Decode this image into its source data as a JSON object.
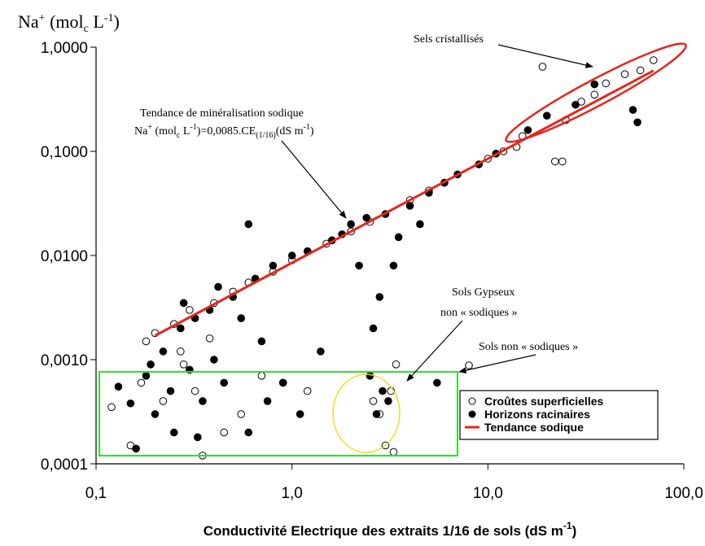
{
  "chart_data": {
    "type": "scatter",
    "y_label": [
      "Na",
      "+",
      " (mol",
      "c",
      " L",
      "-1",
      ")"
    ],
    "x_label": [
      "Conductivité Electrique des extraits 1/16 de sols (dS m",
      "-1",
      ")"
    ],
    "annotations": {
      "crystal": "Sels cristallisés",
      "trend_title": "Tendance de minéralisation sodique",
      "formula": [
        "Na",
        "+",
        " (mol",
        "c",
        " L",
        "-1",
        ")=0,0085.CE",
        "(1/16)",
        "(dS m",
        "-1",
        ")"
      ],
      "gypsum_1": "Sols Gypseux",
      "gypsum_2": "non « sodiques »",
      "non_sodic": "Sols non « sodiques »"
    },
    "log_x": true,
    "log_y": true,
    "xlim": [
      0.1,
      100
    ],
    "ylim": [
      0.0001,
      1
    ],
    "xticks": [
      {
        "value": 0.1,
        "label": "0,1"
      },
      {
        "value": 1,
        "label": "1,0"
      },
      {
        "value": 10,
        "label": "10,0"
      },
      {
        "value": 100,
        "label": "100,0"
      }
    ],
    "yticks": [
      {
        "value": 0.0001,
        "label": "0,0001"
      },
      {
        "value": 0.001,
        "label": "0,0010"
      },
      {
        "value": 0.01,
        "label": "0,0100"
      },
      {
        "value": 0.1,
        "label": "0,1000"
      },
      {
        "value": 1,
        "label": "1,0000"
      }
    ],
    "legend": "lower right",
    "series": [
      {
        "name": "Croûtes superficielles",
        "marker": "open-circle",
        "color": "#000000",
        "x": [
          0.12,
          0.15,
          0.18,
          0.2,
          0.22,
          0.25,
          0.28,
          0.3,
          0.32,
          0.35,
          0.4,
          0.45,
          0.5,
          0.6,
          0.7,
          0.8,
          1.0,
          1.2,
          1.5,
          2.0,
          2.5,
          3.0,
          3.3,
          4.0,
          5.0,
          6.0,
          8.0,
          10,
          12,
          15,
          19,
          22,
          25,
          30,
          35,
          40,
          50,
          60,
          70,
          2.6,
          2.8,
          3.2,
          3.4,
          0.27,
          0.38,
          0.55,
          0.9,
          14,
          24,
          0.17
        ],
        "values": [
          0.00035,
          0.00015,
          0.0015,
          0.0018,
          0.0004,
          0.0022,
          0.0009,
          0.003,
          0.0005,
          0.00012,
          0.0035,
          0.0002,
          0.0045,
          0.0055,
          0.0007,
          0.007,
          0.009,
          0.0005,
          0.013,
          0.017,
          0.021,
          0.00015,
          0.00013,
          0.034,
          0.042,
          0.05,
          0.00088,
          0.085,
          0.1,
          0.14,
          0.65,
          0.08,
          0.2,
          0.3,
          0.35,
          0.45,
          0.55,
          0.6,
          0.75,
          0.0004,
          0.0003,
          0.0005,
          0.0009,
          0.0012,
          0.0016,
          0.0003,
          0.0006,
          0.11,
          0.08,
          0.0006
        ]
      },
      {
        "name": "Horizons racinaires",
        "marker": "filled-circle",
        "color": "#000000",
        "x": [
          0.13,
          0.15,
          0.16,
          0.18,
          0.2,
          0.22,
          0.24,
          0.25,
          0.27,
          0.3,
          0.32,
          0.35,
          0.38,
          0.4,
          0.45,
          0.5,
          0.55,
          0.6,
          0.65,
          0.7,
          0.8,
          0.9,
          1.0,
          1.2,
          1.4,
          1.6,
          1.8,
          2.0,
          2.2,
          2.4,
          2.5,
          2.6,
          2.7,
          2.8,
          2.9,
          3.0,
          3.1,
          3.3,
          3.5,
          4.0,
          4.5,
          5.0,
          5.5,
          6.0,
          7.0,
          9.0,
          11,
          16,
          20,
          28,
          35,
          55,
          58,
          0.42,
          0.28,
          0.6,
          0.75,
          1.1,
          0.33,
          0.19
        ],
        "values": [
          0.00055,
          0.00038,
          0.00014,
          0.0007,
          0.0003,
          0.0012,
          0.0005,
          0.0002,
          0.002,
          0.0008,
          0.0025,
          0.0004,
          0.003,
          0.001,
          0.0006,
          0.004,
          0.0025,
          0.0002,
          0.006,
          0.0015,
          0.008,
          0.0006,
          0.01,
          0.011,
          0.0012,
          0.014,
          0.016,
          0.02,
          0.008,
          0.023,
          0.0007,
          0.002,
          0.0003,
          0.004,
          0.0005,
          0.025,
          0.0004,
          0.008,
          0.015,
          0.03,
          0.02,
          0.04,
          0.0006,
          0.05,
          0.06,
          0.075,
          0.095,
          0.16,
          0.22,
          0.28,
          0.44,
          0.25,
          0.19,
          0.005,
          0.0035,
          0.02,
          0.0004,
          0.0003,
          0.00018,
          0.0009
        ]
      },
      {
        "name": "Tendance sodique",
        "marker": "line",
        "color": "#e8241c",
        "x": [
          0.2,
          70
        ],
        "values": [
          0.0017,
          0.595
        ]
      }
    ]
  }
}
